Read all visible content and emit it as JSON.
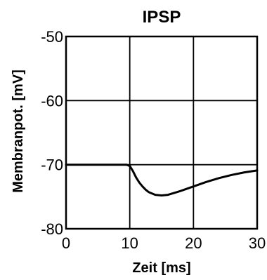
{
  "chart_data": {
    "type": "line",
    "title": "IPSP",
    "xlabel": "Zeit [ms]",
    "ylabel": "Membranpot. [mV]",
    "xlim": [
      0,
      30
    ],
    "ylim": [
      -80,
      -50
    ],
    "xticks": [
      0,
      10,
      20,
      30
    ],
    "xtick_labels": [
      "0",
      "10",
      "20",
      "30"
    ],
    "yticks": [
      -50,
      -60,
      -70,
      -80
    ],
    "ytick_labels": [
      "-50",
      "-60",
      "-70",
      "-80"
    ],
    "grid": true,
    "series": [
      {
        "x": [
          0,
          2,
          4,
          6,
          8,
          9.5,
          10,
          10.5,
          11,
          11.5,
          12,
          12.5,
          13,
          14,
          15,
          16,
          18,
          20,
          22,
          24,
          26,
          28,
          30
        ],
        "y": [
          -70,
          -70,
          -70,
          -70,
          -70,
          -70,
          -70.2,
          -71,
          -72,
          -72.8,
          -73.4,
          -73.9,
          -74.3,
          -74.7,
          -74.8,
          -74.7,
          -74.1,
          -73.4,
          -72.7,
          -72.1,
          -71.6,
          -71.2,
          -70.9
        ]
      }
    ]
  }
}
